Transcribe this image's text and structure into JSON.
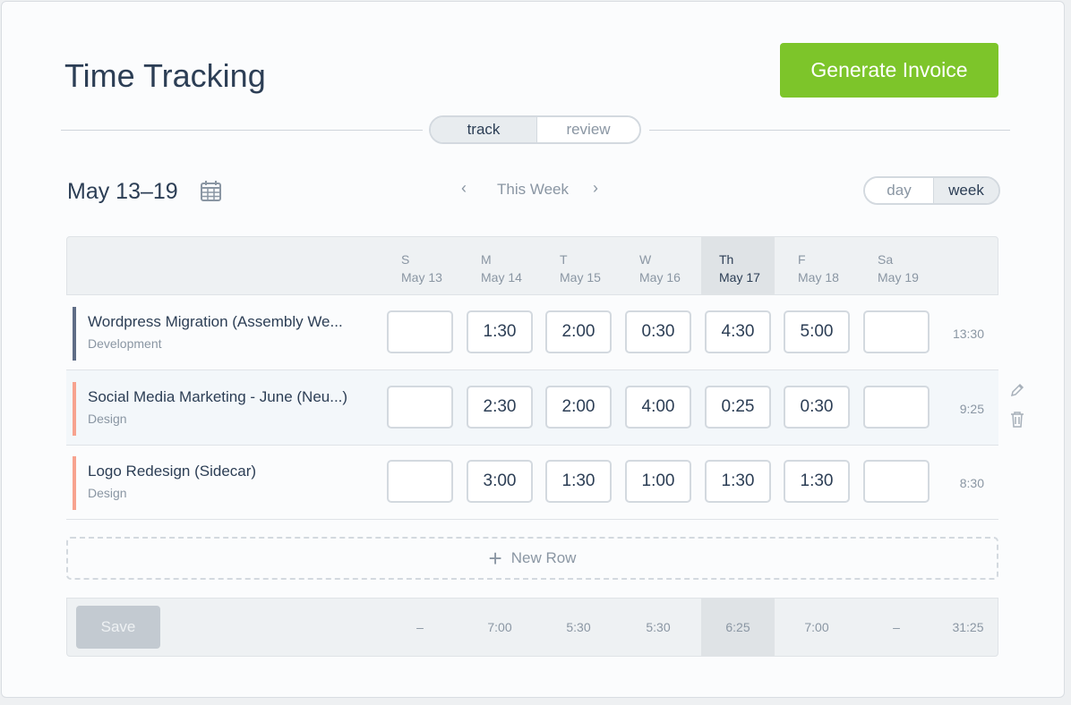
{
  "header": {
    "title": "Time Tracking",
    "generate_invoice": "Generate Invoice"
  },
  "mode_tabs": [
    {
      "label": "track",
      "active": true
    },
    {
      "label": "review",
      "active": false
    }
  ],
  "week": {
    "range": "May 13–19",
    "nav_label": "This Week"
  },
  "view_tabs": [
    {
      "label": "day",
      "active": false
    },
    {
      "label": "week",
      "active": true
    }
  ],
  "days": [
    {
      "d": "S",
      "date": "May 13"
    },
    {
      "d": "M",
      "date": "May 14"
    },
    {
      "d": "T",
      "date": "May 15"
    },
    {
      "d": "W",
      "date": "May 16"
    },
    {
      "d": "Th",
      "date": "May 17",
      "today": true
    },
    {
      "d": "F",
      "date": "May 18"
    },
    {
      "d": "Sa",
      "date": "May 19"
    }
  ],
  "rows": [
    {
      "name": "Wordpress Migration (Assembly We...",
      "category": "Development",
      "color": "#5f6d86",
      "hours": [
        "",
        "1:30",
        "2:00",
        "0:30",
        "4:30",
        "5:00",
        ""
      ],
      "total": "13:30"
    },
    {
      "name": "Social Media Marketing - June (Neu...)",
      "category": "Design",
      "color": "#f7a38f",
      "hours": [
        "",
        "2:30",
        "2:00",
        "4:00",
        "0:25",
        "0:30",
        ""
      ],
      "total": "9:25"
    },
    {
      "name": "Logo Redesign (Sidecar)",
      "category": "Design",
      "color": "#f7a38f",
      "hours": [
        "",
        "3:00",
        "1:30",
        "1:00",
        "1:30",
        "1:30",
        ""
      ],
      "total": "8:30"
    }
  ],
  "new_row": "New Row",
  "footer": {
    "save": "Save",
    "totals": [
      "–",
      "7:00",
      "5:30",
      "5:30",
      "6:25",
      "7:00",
      "–"
    ],
    "grand_total": "31:25"
  },
  "colors": {
    "accent": "#7dc52a",
    "text": "#2c3e55"
  },
  "icons": {
    "calendar": "calendar-icon",
    "prev": "chevron-left-icon",
    "next": "chevron-right-icon",
    "edit": "pencil-icon",
    "delete": "trash-icon",
    "add": "plus-icon"
  }
}
